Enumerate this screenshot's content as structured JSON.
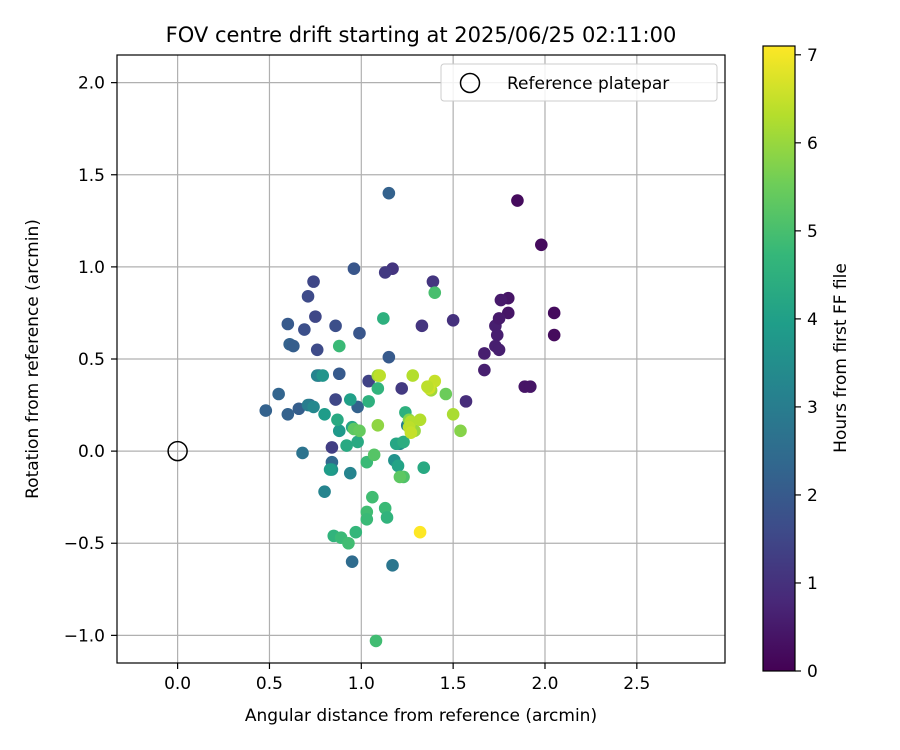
{
  "chart_data": {
    "type": "scatter",
    "title": "FOV centre drift starting at 2025/06/25 02:11:00",
    "xlabel": "Angular distance from reference (arcmin)",
    "ylabel": "Rotation from reference (arcmin)",
    "xlim": [
      -0.33,
      2.98
    ],
    "ylim": [
      -1.15,
      2.15
    ],
    "xticks": [
      0.0,
      0.5,
      1.0,
      1.5,
      2.0,
      2.5
    ],
    "xtick_labels": [
      "0.0",
      "0.5",
      "1.0",
      "1.5",
      "2.0",
      "2.5"
    ],
    "yticks": [
      -1.0,
      -0.5,
      0.0,
      0.5,
      1.0,
      1.5,
      2.0
    ],
    "ytick_labels": [
      "−1.0",
      "−0.5",
      "0.0",
      "0.5",
      "1.0",
      "1.5",
      "2.0"
    ],
    "grid": true,
    "legend": {
      "placement": "upper-right",
      "entries": [
        "Reference platepar"
      ]
    },
    "reference_point": {
      "name": "Reference platepar",
      "x": 0.0,
      "y": 0.0
    },
    "colorbar": {
      "label": "Hours from first FF file",
      "colormap": "viridis",
      "min": 0,
      "max": 7.1,
      "ticks": [
        0,
        1,
        2,
        3,
        4,
        5,
        6,
        7
      ],
      "tick_labels": [
        "0",
        "1",
        "2",
        "3",
        "4",
        "5",
        "6",
        "7"
      ]
    },
    "series": [
      {
        "color_by": "hours_from_first_ff_file",
        "x": [
          1.85,
          1.98,
          2.05,
          2.05,
          1.8,
          1.76,
          1.8,
          1.73,
          1.75,
          1.74,
          1.73,
          1.75,
          1.67,
          1.67,
          1.89,
          1.92,
          1.57,
          1.5,
          1.39,
          1.33,
          1.22,
          1.17,
          1.13,
          0.96,
          0.74,
          0.71,
          0.75,
          0.69,
          0.6,
          0.61,
          0.63,
          0.77,
          0.76,
          0.86,
          0.99,
          1.15,
          1.15,
          1.04,
          0.88,
          0.86,
          0.98,
          0.66,
          0.55,
          0.48,
          0.6,
          0.72,
          0.84,
          0.68,
          0.84,
          0.95,
          0.8,
          0.71,
          0.74,
          0.76,
          0.79,
          0.88,
          1.25,
          1.21,
          1.18,
          0.84,
          0.83,
          0.8,
          0.87,
          0.94,
          0.95,
          0.92,
          0.98,
          1.04,
          1.09,
          1.12,
          1.19,
          1.24,
          1.2,
          1.23,
          1.34,
          1.17,
          0.94,
          0.85,
          0.89,
          0.93,
          0.97,
          1.03,
          1.03,
          1.06,
          1.13,
          1.14,
          1.03,
          0.88,
          0.96,
          0.99,
          1.09,
          1.09,
          1.26,
          1.29,
          1.23,
          1.21,
          1.07,
          1.1,
          1.4,
          1.46,
          1.54,
          1.5,
          1.38,
          1.4,
          1.37,
          1.36,
          1.32,
          1.28,
          1.27,
          1.26,
          1.27,
          1.08,
          1.32
        ],
        "y": [
          1.36,
          1.12,
          0.75,
          0.63,
          0.83,
          0.82,
          0.75,
          0.68,
          0.72,
          0.63,
          0.57,
          0.55,
          0.53,
          0.44,
          0.35,
          0.35,
          0.27,
          0.71,
          0.92,
          0.68,
          0.34,
          0.99,
          0.97,
          0.99,
          0.92,
          0.84,
          0.73,
          0.66,
          0.69,
          0.58,
          0.57,
          0.41,
          0.55,
          0.68,
          0.64,
          1.4,
          0.51,
          0.38,
          0.42,
          0.28,
          0.24,
          0.23,
          0.31,
          0.22,
          0.2,
          0.25,
          0.02,
          -0.01,
          -0.06,
          -0.6,
          -0.22,
          0.25,
          0.24,
          0.41,
          0.41,
          0.11,
          0.14,
          0.04,
          -0.05,
          -0.1,
          -0.1,
          0.2,
          0.17,
          0.28,
          0.13,
          0.03,
          0.05,
          0.27,
          0.34,
          0.72,
          0.04,
          0.21,
          -0.08,
          0.05,
          -0.09,
          -0.62,
          -0.12,
          -0.46,
          -0.47,
          -0.5,
          -0.44,
          -0.33,
          -0.37,
          -0.25,
          -0.31,
          -0.36,
          -0.06,
          0.57,
          0.12,
          0.11,
          0.14,
          0.41,
          0.17,
          0.11,
          -0.14,
          -0.14,
          -0.02,
          0.41,
          0.86,
          0.31,
          0.11,
          0.2,
          0.33,
          0.38,
          0.34,
          0.35,
          0.17,
          0.41,
          0.16,
          0.13,
          0.1,
          -1.03,
          -0.44
        ],
        "hours": [
          0.2,
          0.2,
          0.2,
          0.2,
          0.4,
          0.5,
          0.4,
          0.6,
          0.5,
          0.6,
          0.6,
          0.6,
          0.6,
          0.6,
          0.4,
          0.4,
          0.9,
          1.0,
          1.1,
          1.1,
          1.2,
          1.1,
          1.2,
          1.9,
          1.5,
          1.6,
          1.5,
          1.7,
          2.0,
          2.2,
          2.1,
          1.5,
          1.6,
          1.7,
          1.9,
          2.2,
          2.0,
          1.4,
          2.0,
          1.5,
          2.2,
          2.1,
          2.3,
          2.2,
          2.2,
          2.3,
          1.3,
          2.7,
          2.4,
          2.5,
          3.2,
          3.0,
          3.3,
          3.2,
          3.7,
          3.8,
          3.1,
          3.5,
          3.6,
          3.6,
          3.9,
          3.9,
          4.3,
          4.0,
          4.2,
          4.3,
          4.3,
          4.5,
          4.6,
          4.5,
          4.2,
          4.5,
          4.1,
          4.4,
          4.3,
          2.8,
          3.2,
          4.6,
          4.8,
          4.9,
          4.7,
          4.9,
          4.8,
          4.9,
          4.8,
          4.6,
          4.8,
          4.8,
          5.3,
          5.4,
          5.9,
          6.1,
          5.8,
          6.0,
          5.1,
          5.3,
          5.2,
          6.4,
          5.0,
          5.5,
          5.8,
          6.2,
          6.1,
          6.5,
          6.6,
          6.4,
          6.3,
          6.3,
          6.3,
          6.4,
          6.5,
          4.9,
          7.1
        ]
      }
    ]
  }
}
